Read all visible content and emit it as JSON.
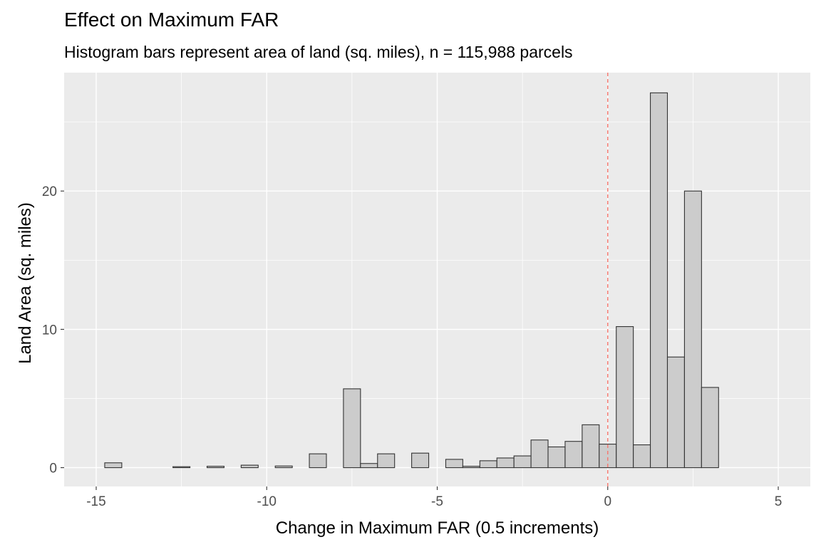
{
  "chart_data": {
    "type": "bar",
    "title": "Effect on Maximum FAR",
    "subtitle": "Histogram bars represent area of land (sq. miles), n = 115,988 parcels",
    "xlabel": "Change in Maximum FAR (0.5 increments)",
    "ylabel": "Land Area (sq. miles)",
    "xlim": [
      -15.94,
      5.94
    ],
    "ylim": [
      -1.36,
      28.56
    ],
    "x_ticks": [
      -15,
      -10,
      -5,
      0,
      5
    ],
    "x_tick_labels": [
      "-15",
      "-10",
      "-5",
      "0",
      "5"
    ],
    "y_ticks": [
      0,
      10,
      20
    ],
    "y_tick_labels": [
      "0",
      "10",
      "20"
    ],
    "bin_width": 0.5,
    "bin_centers": [
      -14.5,
      -14.0,
      -13.5,
      -13.0,
      -12.5,
      -12.0,
      -11.5,
      -11.0,
      -10.5,
      -10.0,
      -9.5,
      -9.0,
      -8.5,
      -8.0,
      -7.5,
      -7.0,
      -6.5,
      -6.0,
      -5.5,
      -5.0,
      -4.5,
      -4.0,
      -3.5,
      -3.0,
      -2.5,
      -2.0,
      -1.5,
      -1.0,
      -0.5,
      0.0,
      0.5,
      1.0,
      1.5,
      2.0,
      2.5,
      3.0,
      3.5,
      4.0,
      4.5
    ],
    "values": [
      0.35,
      0,
      0,
      0,
      0.07,
      0,
      0.1,
      0,
      0.18,
      0,
      0.12,
      0,
      1.0,
      0,
      5.7,
      0.3,
      1.0,
      0,
      1.05,
      0,
      0.6,
      0.1,
      0.5,
      0.7,
      0.85,
      2.0,
      1.5,
      1.9,
      3.1,
      1.7,
      10.2,
      1.65,
      27.1,
      8.0,
      20.0,
      5.8,
      0,
      0,
      0
    ],
    "reference_line": {
      "x": 0,
      "color": "#f8766d",
      "style": "dashed"
    },
    "grid": true,
    "legend": "none",
    "colors": {
      "panel": "#ebebeb",
      "grid": "#ffffff",
      "bar_fill": "#cccccc",
      "bar_stroke": "#333333"
    }
  }
}
